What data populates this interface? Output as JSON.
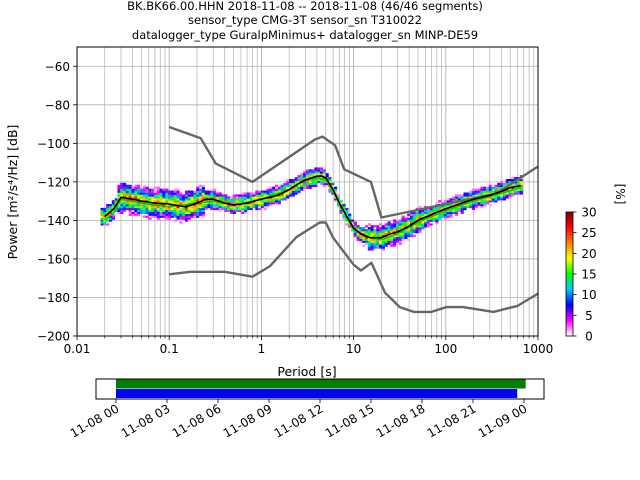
{
  "title_lines": [
    "BK.BK66.00.HHN   2018-11-08 -- 2018-11-08  (46/46 segments)",
    "sensor_type CMG-3T sensor_sn T310022",
    "datalogger_type GuralpMinimus+ datalogger_sn MINP-DE59"
  ],
  "chart_data": {
    "type": "heatmap",
    "xscale": "log",
    "xlabel": "Period [s]",
    "ylabel": "Power [m²/s⁴/Hz] [dB]",
    "xlim": [
      0.01,
      1000
    ],
    "ylim": [
      -200,
      -50
    ],
    "x_ticks": [
      0.01,
      0.1,
      1,
      10,
      100,
      1000
    ],
    "x_tick_labels": [
      "0.01",
      "0.1",
      "1",
      "10",
      "100",
      "1000"
    ],
    "y_ticks": [
      -200,
      -180,
      -160,
      -140,
      -120,
      -100,
      -80,
      -60
    ],
    "y_tick_labels": [
      "−200",
      "−180",
      "−160",
      "−140",
      "−120",
      "−100",
      "−80",
      "−60"
    ],
    "grid": true,
    "colorbar": {
      "label": "[%]",
      "range": [
        0,
        30
      ],
      "ticks": [
        0,
        5,
        10,
        15,
        20,
        25,
        30
      ],
      "colors": [
        "#ffffff",
        "#ff00ff",
        "#0000ff",
        "#00c8ff",
        "#00ff00",
        "#ffff00",
        "#ff8000",
        "#ff0000",
        "#800000"
      ]
    },
    "noise_models": [
      {
        "id": "nhnm",
        "color": "#666666",
        "points": [
          [
            0.1,
            -91.5
          ],
          [
            0.22,
            -97.4
          ],
          [
            0.32,
            -110.5
          ],
          [
            0.8,
            -120
          ],
          [
            3.8,
            -98
          ],
          [
            4.6,
            -96.5
          ],
          [
            6.3,
            -101
          ],
          [
            7.9,
            -113.5
          ],
          [
            15.4,
            -120
          ],
          [
            20,
            -138.5
          ],
          [
            354.8,
            -126
          ],
          [
            1000,
            -112
          ]
        ]
      },
      {
        "id": "nlnm",
        "color": "#666666",
        "points": [
          [
            0.1,
            -168
          ],
          [
            0.17,
            -166.7
          ],
          [
            0.4,
            -166.7
          ],
          [
            0.8,
            -169.2
          ],
          [
            1.24,
            -163.7
          ],
          [
            2.4,
            -148.6
          ],
          [
            4.3,
            -141.1
          ],
          [
            5,
            -141.1
          ],
          [
            6,
            -149
          ],
          [
            10,
            -163
          ],
          [
            12,
            -166
          ],
          [
            15.6,
            -162
          ],
          [
            21.9,
            -177.5
          ],
          [
            31.6,
            -185
          ],
          [
            45,
            -187.5
          ],
          [
            70,
            -187.5
          ],
          [
            101,
            -185
          ],
          [
            154,
            -185
          ],
          [
            328,
            -187.5
          ],
          [
            600,
            -184.4
          ],
          [
            1000,
            -178
          ]
        ]
      }
    ],
    "psd_mode": {
      "color": "#000000",
      "points": [
        [
          0.02,
          -138
        ],
        [
          0.025,
          -134
        ],
        [
          0.03,
          -128
        ],
        [
          0.04,
          -129
        ],
        [
          0.05,
          -130
        ],
        [
          0.07,
          -131
        ],
        [
          0.1,
          -131.5
        ],
        [
          0.15,
          -133
        ],
        [
          0.2,
          -131
        ],
        [
          0.25,
          -129
        ],
        [
          0.3,
          -129
        ],
        [
          0.4,
          -131
        ],
        [
          0.5,
          -132
        ],
        [
          0.7,
          -131
        ],
        [
          1,
          -129
        ],
        [
          1.5,
          -127
        ],
        [
          2,
          -124
        ],
        [
          2.5,
          -121
        ],
        [
          3,
          -119
        ],
        [
          3.5,
          -118
        ],
        [
          4,
          -117
        ],
        [
          4.5,
          -117
        ],
        [
          5,
          -118
        ],
        [
          6,
          -124
        ],
        [
          7,
          -131
        ],
        [
          8,
          -136
        ],
        [
          10,
          -144
        ],
        [
          12,
          -147
        ],
        [
          15,
          -149
        ],
        [
          20,
          -149
        ],
        [
          25,
          -147
        ],
        [
          30,
          -146
        ],
        [
          40,
          -143
        ],
        [
          50,
          -140
        ],
        [
          70,
          -137
        ],
        [
          100,
          -134
        ],
        [
          150,
          -131
        ],
        [
          200,
          -129
        ],
        [
          300,
          -127
        ],
        [
          400,
          -125
        ],
        [
          500,
          -123
        ],
        [
          650,
          -122
        ]
      ]
    },
    "psd_mean": {
      "color": "#00cc00",
      "points": [
        [
          0.02,
          -140
        ],
        [
          0.025,
          -136
        ],
        [
          0.03,
          -129
        ],
        [
          0.05,
          -131
        ],
        [
          0.1,
          -133
        ],
        [
          0.2,
          -131
        ],
        [
          0.3,
          -130
        ],
        [
          0.5,
          -132
        ],
        [
          1,
          -129
        ],
        [
          2,
          -124
        ],
        [
          3,
          -119
        ],
        [
          4,
          -118
        ],
        [
          5,
          -119
        ],
        [
          6,
          -125
        ],
        [
          8,
          -136
        ],
        [
          10,
          -145
        ],
        [
          15,
          -149
        ],
        [
          20,
          -150
        ],
        [
          30,
          -147
        ],
        [
          50,
          -141
        ],
        [
          100,
          -135
        ],
        [
          200,
          -130
        ],
        [
          400,
          -126
        ],
        [
          650,
          -123
        ]
      ]
    },
    "time_axis": {
      "tick_labels": [
        "11-08 00",
        "11-08 03",
        "11-08 06",
        "11-08 09",
        "11-08 12",
        "11-08 15",
        "11-08 18",
        "11-08 21",
        "11-09 00"
      ],
      "bars": [
        {
          "id": "data-availability-bar",
          "color": "#008000",
          "start_h": 0,
          "end_h": 24.1
        },
        {
          "id": "used-segments-bar",
          "color": "#0000ff",
          "start_h": 0,
          "end_h": 23.6
        }
      ]
    }
  }
}
